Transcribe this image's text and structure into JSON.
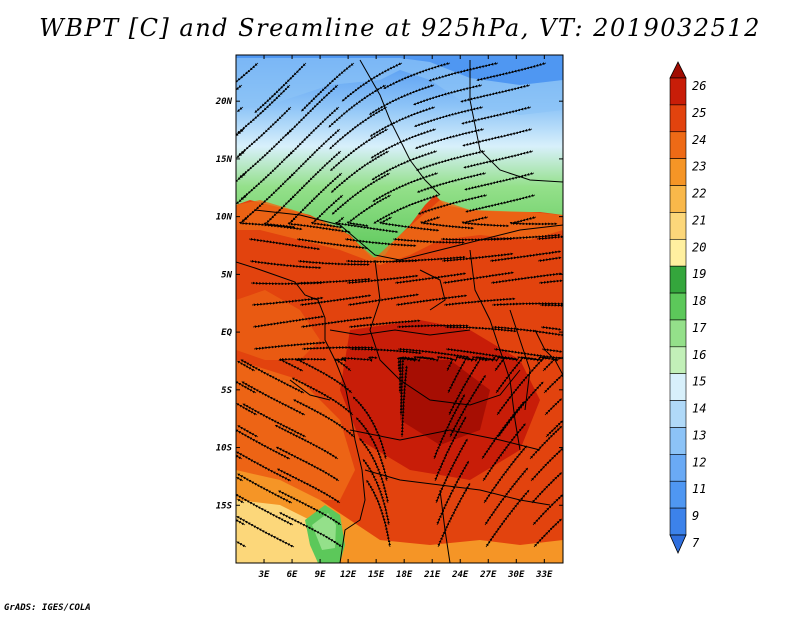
{
  "title": "WBPT [C] and Sreamline at 925hPa, VT: 2019032512",
  "credit": "GrADS: IGES/COLA",
  "map": {
    "lon_ticks": [
      "3E",
      "6E",
      "9E",
      "12E",
      "15E",
      "18E",
      "21E",
      "24E",
      "27E",
      "30E",
      "33E"
    ],
    "lat_ticks": [
      "20N",
      "15N",
      "10N",
      "5N",
      "EQ",
      "5S",
      "10S",
      "15S"
    ],
    "lon_range": [
      0,
      35
    ],
    "lat_range": [
      -20,
      24
    ]
  },
  "colorbar": {
    "labels": [
      "7",
      "9",
      "11",
      "12",
      "13",
      "14",
      "15",
      "16",
      "17",
      "18",
      "19",
      "20",
      "21",
      "22",
      "23",
      "24",
      "25",
      "26"
    ],
    "colors": [
      "#2f6fde",
      "#3c82ea",
      "#4f97f2",
      "#6aaaf5",
      "#8cc3f7",
      "#b0d9f8",
      "#d8f0fb",
      "#c2f0b8",
      "#94e08a",
      "#5cc85a",
      "#34a63c",
      "#fff0a0",
      "#fcd77a",
      "#f9b84a",
      "#f59526",
      "#ee6a16",
      "#e2430e",
      "#c81d08",
      "#a00c02"
    ]
  }
}
